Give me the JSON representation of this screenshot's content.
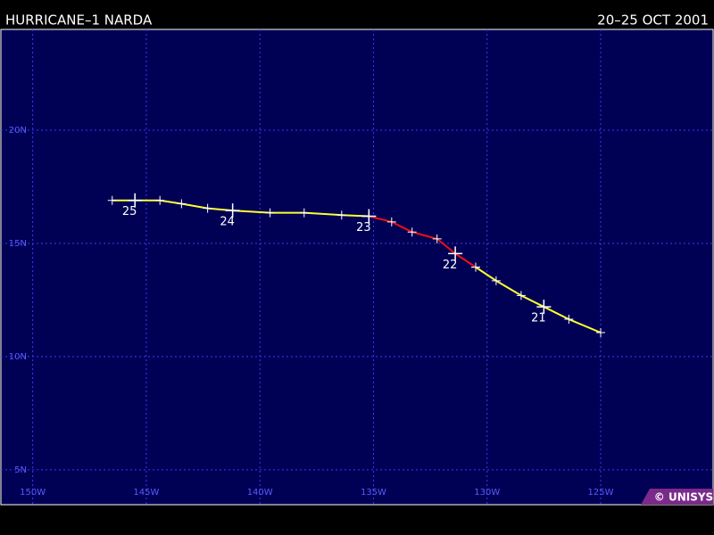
{
  "chart_data": {
    "type": "track",
    "title": "HURRICANE–1 NARDA",
    "subtitle": "20–25 OCT 2001",
    "credit": "© UNISYS",
    "xlim": [
      -151.4,
      -120.05
    ],
    "ylim": [
      3.46,
      24.45
    ],
    "xticks": [
      {
        "value": -150,
        "label": "150W"
      },
      {
        "value": -145,
        "label": "145W"
      },
      {
        "value": -140,
        "label": "140W"
      },
      {
        "value": -135,
        "label": "135W"
      },
      {
        "value": -130,
        "label": "130W"
      },
      {
        "value": -125,
        "label": "125W"
      }
    ],
    "yticks": [
      {
        "value": 20,
        "label": "20N"
      },
      {
        "value": 15,
        "label": "15N"
      },
      {
        "value": 10,
        "label": "10N"
      },
      {
        "value": 5,
        "label": "5N"
      }
    ],
    "grid": true,
    "series": [
      {
        "color": "#ffff33",
        "x": [
          -125.0,
          -126.4,
          -127.5,
          -128.5,
          -129.6,
          -130.5
        ],
        "values": [
          11.06,
          11.65,
          12.2,
          12.7,
          13.35,
          13.95
        ]
      },
      {
        "color": "#ee1111",
        "x": [
          -130.5,
          -131.4,
          -132.2,
          -133.3,
          -134.2,
          -135.2
        ],
        "values": [
          13.95,
          14.55,
          15.2,
          15.5,
          15.95,
          16.2
        ]
      },
      {
        "color": "#ffff33",
        "x": [
          -135.2,
          -136.4,
          -138.05,
          -139.55,
          -141.2,
          -142.3,
          -143.45,
          -144.4,
          -145.5,
          -146.5
        ],
        "values": [
          16.2,
          16.25,
          16.35,
          16.35,
          16.45,
          16.55,
          16.75,
          16.9,
          16.9,
          16.9
        ]
      }
    ],
    "annotations": [
      {
        "text": "21",
        "x": -127.5,
        "y": 12.2
      },
      {
        "text": "22",
        "x": -131.4,
        "y": 14.55
      },
      {
        "text": "23",
        "x": -135.2,
        "y": 16.2
      },
      {
        "text": "24",
        "x": -141.2,
        "y": 16.45
      },
      {
        "text": "25",
        "x": -145.5,
        "y": 16.9
      }
    ]
  }
}
